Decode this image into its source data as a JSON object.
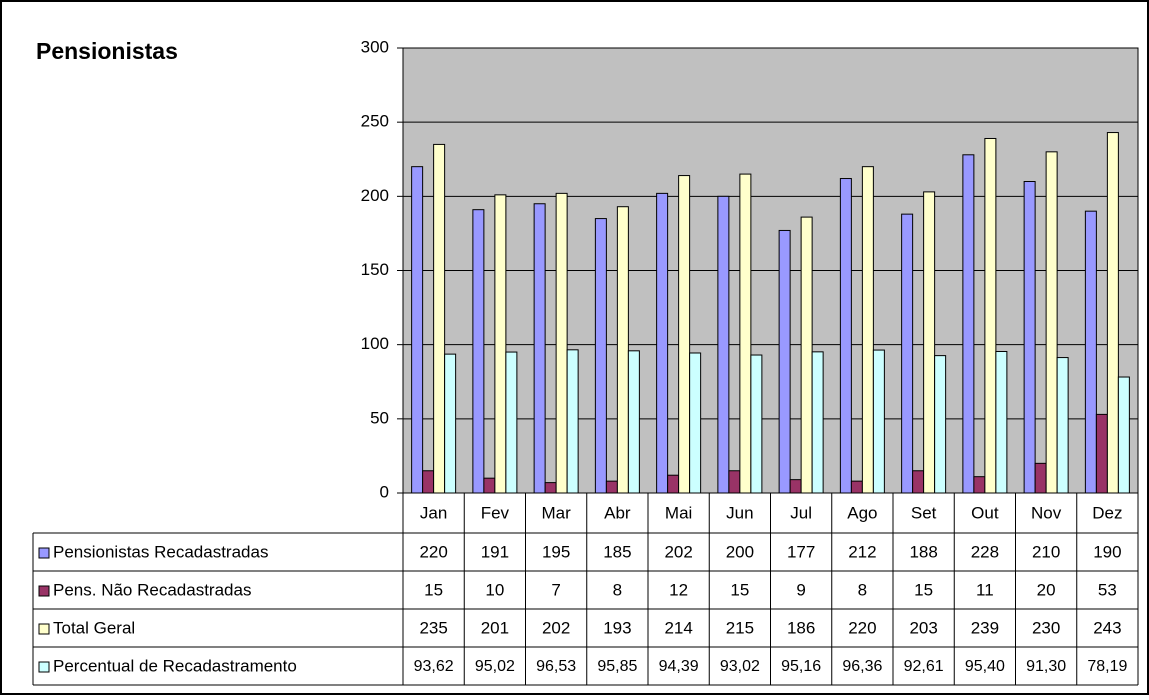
{
  "chart_data": {
    "type": "bar",
    "title": "Pensionistas",
    "categories": [
      "Jan",
      "Fev",
      "Mar",
      "Abr",
      "Mai",
      "Jun",
      "Jul",
      "Ago",
      "Set",
      "Out",
      "Nov",
      "Dez"
    ],
    "series": [
      {
        "name": "Pensionistas Recadastradas",
        "color": "#9999ff",
        "values": [
          220,
          191,
          195,
          185,
          202,
          200,
          177,
          212,
          188,
          228,
          210,
          190
        ]
      },
      {
        "name": "Pens. Não Recadastradas",
        "color": "#993366",
        "values": [
          15,
          10,
          7,
          8,
          12,
          15,
          9,
          8,
          15,
          11,
          20,
          53
        ]
      },
      {
        "name": "Total Geral",
        "color": "#ffffcc",
        "values": [
          235,
          201,
          202,
          193,
          214,
          215,
          186,
          220,
          203,
          239,
          230,
          243
        ]
      },
      {
        "name": "Percentual de Recadastramento",
        "color": "#ccffff",
        "values": [
          93.62,
          95.02,
          96.53,
          95.85,
          94.39,
          93.02,
          95.16,
          96.36,
          92.61,
          95.4,
          91.3,
          78.19
        ],
        "value_labels": [
          "93,62",
          "95,02",
          "96,53",
          "95,85",
          "94,39",
          "93,02",
          "95,16",
          "96,36",
          "92,61",
          "95,40",
          "91,30",
          "78,19"
        ]
      }
    ],
    "ylim": [
      0,
      300
    ],
    "yticks": [
      0,
      50,
      100,
      150,
      200,
      250,
      300
    ],
    "grid": true,
    "plot_background": "#c0c0c0"
  }
}
